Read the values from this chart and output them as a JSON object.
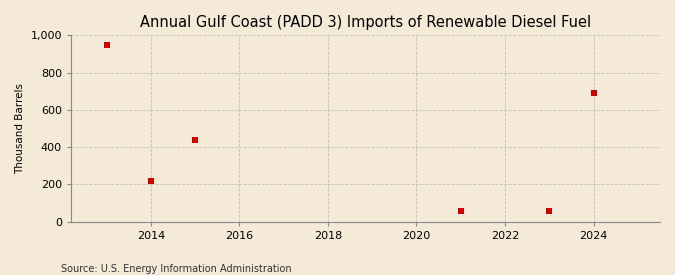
{
  "title": "Annual Gulf Coast (PADD 3) Imports of Renewable Diesel Fuel",
  "ylabel": "Thousand Barrels",
  "source": "Source: U.S. Energy Information Administration",
  "x_values": [
    2013,
    2014,
    2015,
    2021,
    2023,
    2024
  ],
  "y_values": [
    950,
    220,
    440,
    55,
    55,
    690
  ],
  "marker_color": "#cc0000",
  "marker_size": 4,
  "xlim": [
    2012.2,
    2025.5
  ],
  "ylim": [
    0,
    1000
  ],
  "yticks": [
    0,
    200,
    400,
    600,
    800,
    1000
  ],
  "xticks": [
    2014,
    2016,
    2018,
    2020,
    2022,
    2024
  ],
  "background_color": "#f5ead8",
  "grid_color": "#bbbbbb",
  "title_fontsize": 10.5,
  "label_fontsize": 7.5,
  "tick_fontsize": 8,
  "source_fontsize": 7
}
